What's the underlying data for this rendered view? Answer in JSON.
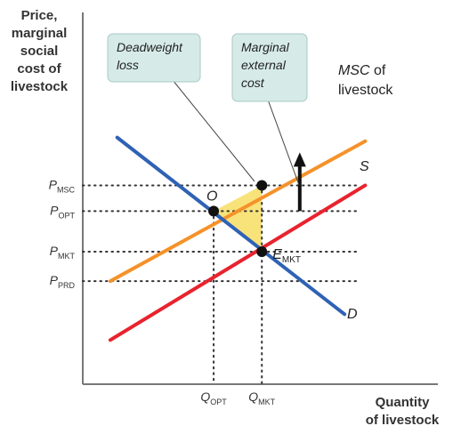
{
  "chart_data": {
    "type": "line",
    "ylabel_lines": [
      "Price,",
      "marginal",
      "social",
      "cost of",
      "livestock"
    ],
    "xlabel_lines": [
      "Quantity",
      "of livestock"
    ],
    "xlim": [
      0,
      10
    ],
    "ylim": [
      0,
      10
    ],
    "curves": [
      {
        "name": "MSC",
        "label_main": "MSC of",
        "label_sub": "livestock",
        "color": "#f5922a",
        "x": [
          0.8,
          8.2
        ],
        "y": [
          2.8,
          6.6
        ]
      },
      {
        "name": "S",
        "label_main": "S",
        "label_sub": "",
        "color": "#e8232e",
        "x": [
          0.8,
          8.2
        ],
        "y": [
          1.2,
          5.4
        ]
      },
      {
        "name": "D",
        "label_main": "D",
        "label_sub": "",
        "color": "#2f62b5",
        "x": [
          1.0,
          7.6
        ],
        "y": [
          6.7,
          1.9
        ]
      }
    ],
    "points": [
      {
        "name": "O",
        "label": "O",
        "x": 3.8,
        "y": 4.7
      },
      {
        "name": "E",
        "label": "E",
        "sub": "MKT",
        "x": 5.2,
        "y": 3.6
      },
      {
        "name": "MSC_at_QMKT",
        "label": "",
        "x": 5.2,
        "y": 5.4
      }
    ],
    "y_ticks": [
      {
        "main": "P",
        "sub": "MSC",
        "value": 5.4
      },
      {
        "main": "P",
        "sub": "OPT",
        "value": 4.7
      },
      {
        "main": "P",
        "sub": "MKT",
        "value": 3.6
      },
      {
        "main": "P",
        "sub": "PRD",
        "value": 2.8
      }
    ],
    "x_ticks": [
      {
        "main": "Q",
        "sub": "OPT",
        "value": 3.8
      },
      {
        "main": "Q",
        "sub": "MKT",
        "value": 5.2
      }
    ],
    "annotations": [
      {
        "name": "deadweight-loss",
        "lines": [
          "Deadweight",
          "loss"
        ]
      },
      {
        "name": "marginal-external-cost",
        "lines": [
          "Marginal",
          "external",
          "cost"
        ]
      }
    ],
    "arrow": {
      "x": 6.3,
      "y_from": 4.7,
      "y_to": 6.2
    },
    "colors": {
      "axis": "#777777",
      "dwl_fill": "#f8e27a",
      "callout_fill": "#d6ebe8"
    },
    "grid": false
  }
}
